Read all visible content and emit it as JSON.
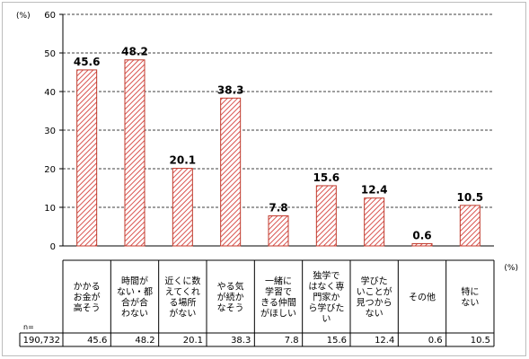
{
  "chart_data": {
    "type": "bar",
    "y_unit": "(%)",
    "table_unit": "(%)",
    "n_label": "n=",
    "n_value": "190,732",
    "ylim": [
      0,
      60
    ],
    "yticks": [
      0,
      10,
      20,
      30,
      40,
      50,
      60
    ],
    "grid": true,
    "bar_color": "#d9534f",
    "bar_fill_pattern": "diagonal-hatch",
    "categories": [
      [
        "かかる",
        "お金が",
        "高そう"
      ],
      [
        "時間が",
        "ない・都",
        "合が合",
        "わない"
      ],
      [
        "近くに数",
        "えてくれ",
        "る場所",
        "がない"
      ],
      [
        "やる気",
        "が続か",
        "なそう"
      ],
      [
        "一緒に",
        "学習で",
        "きる仲間",
        "がほしい"
      ],
      [
        "独学で",
        "はなく専",
        "門家か",
        "ら学びた",
        "い"
      ],
      [
        "学びた",
        "いことが",
        "見つから",
        "ない"
      ],
      [
        "その他"
      ],
      [
        "特に",
        "ない"
      ]
    ],
    "values": [
      45.6,
      48.2,
      20.1,
      38.3,
      7.8,
      15.6,
      12.4,
      0.6,
      10.5
    ],
    "value_labels": [
      "45.6",
      "48.2",
      "20.1",
      "38.3",
      "7.8",
      "15.6",
      "12.4",
      "0.6",
      "10.5"
    ],
    "y_tick_labels": [
      "0",
      "10",
      "20",
      "30",
      "40",
      "50",
      "60"
    ]
  }
}
